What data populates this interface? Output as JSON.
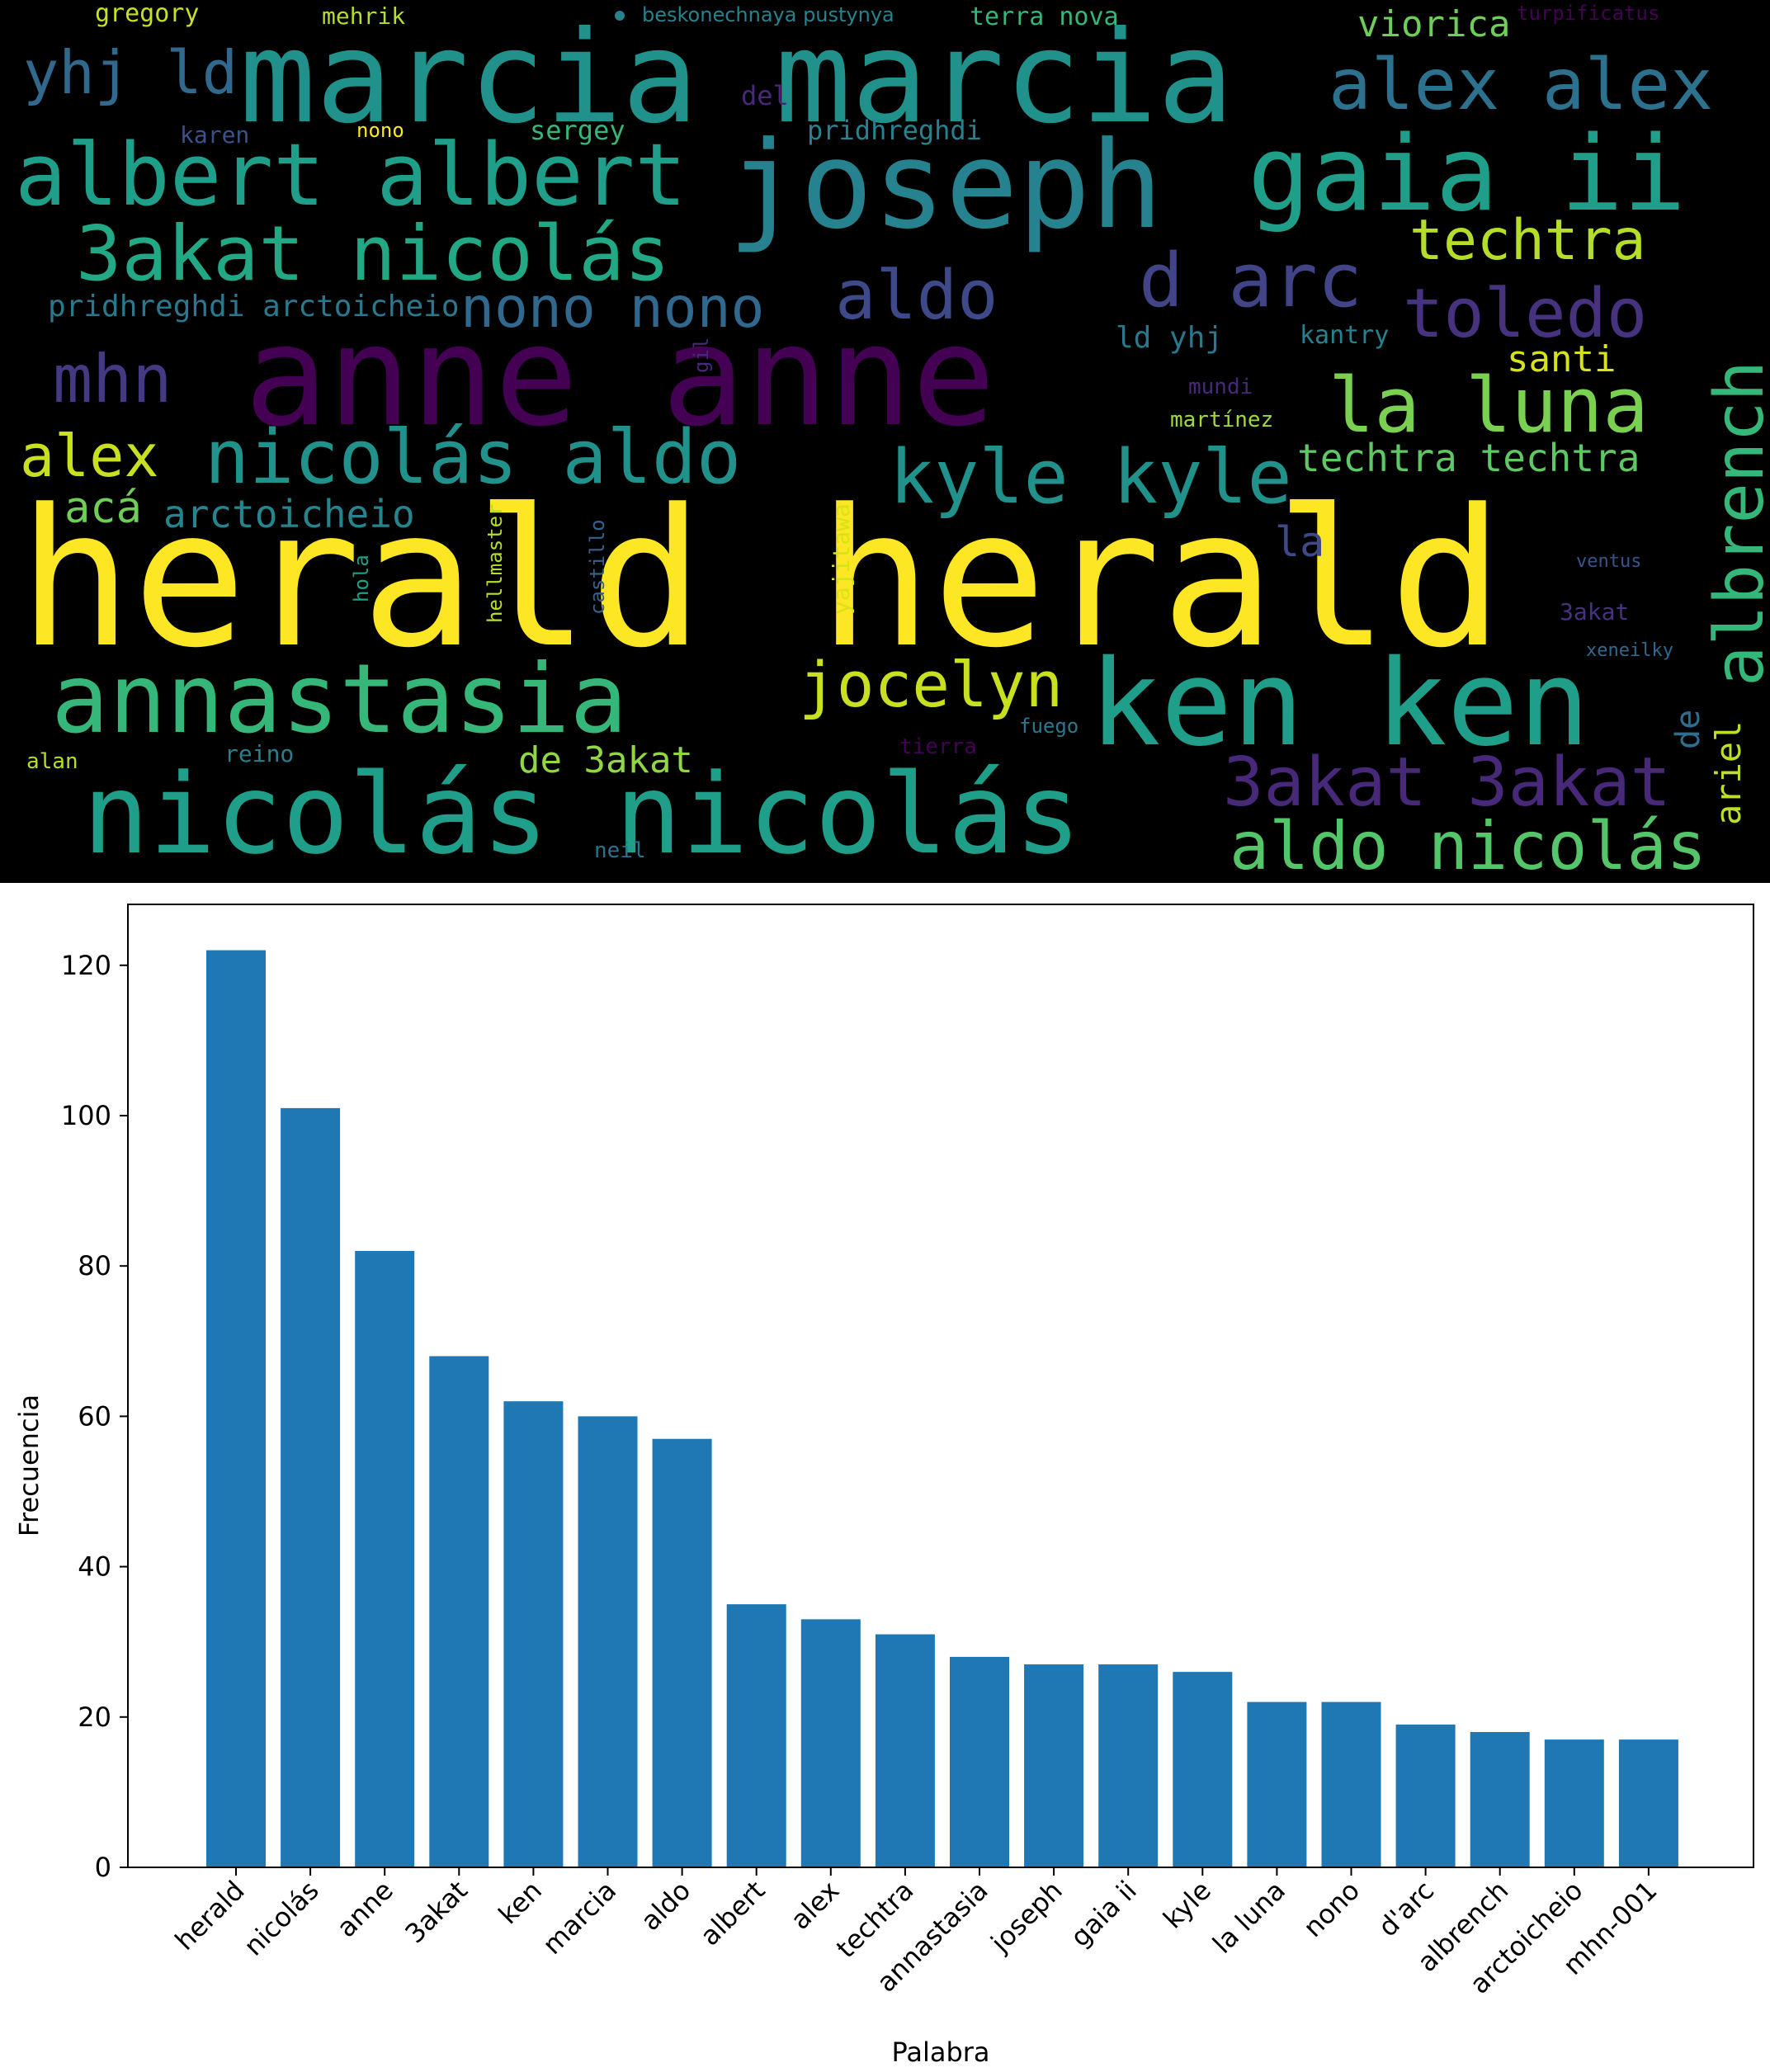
{
  "wordcloud": {
    "words": [
      {
        "t": "gregory",
        "c": "#c8e020"
      },
      {
        "t": "mehrik",
        "c": "#b5de2b"
      },
      {
        "t": "beskonechnaya pustynya",
        "c": "#26828e"
      },
      {
        "t": "terra nova",
        "c": "#35b779"
      },
      {
        "t": "viorica",
        "c": "#6ece58"
      },
      {
        "t": "turpificatus",
        "c": "#440154"
      },
      {
        "t": "yhj ld",
        "c": "#31688e"
      },
      {
        "t": "marcia marcia",
        "c": "#21918c"
      },
      {
        "t": "alex alex",
        "c": "#2c728e"
      },
      {
        "t": "karen",
        "c": "#3b528b"
      },
      {
        "t": "nono",
        "c": "#fde725"
      },
      {
        "t": "sergey",
        "c": "#35b779"
      },
      {
        "t": "pridhreghdi",
        "c": "#26828e"
      },
      {
        "t": "del",
        "c": "#482878"
      },
      {
        "t": "albert albert",
        "c": "#1f9e89"
      },
      {
        "t": "joseph",
        "c": "#26828e"
      },
      {
        "t": "gaia ii",
        "c": "#1f9e89"
      },
      {
        "t": "3akat nicolás",
        "c": "#22a884"
      },
      {
        "t": "techtra",
        "c": "#b5de2b"
      },
      {
        "t": "d arc",
        "c": "#414487"
      },
      {
        "t": "pridhreghdi arctoicheio",
        "c": "#2a788e"
      },
      {
        "t": "nono nono",
        "c": "#31688e"
      },
      {
        "t": "aldo",
        "c": "#3e4989"
      },
      {
        "t": "toledo",
        "c": "#46327e"
      },
      {
        "t": "anne anne",
        "c": "#440154"
      },
      {
        "t": "mhn",
        "c": "#443983"
      },
      {
        "t": "ld yhj",
        "c": "#2a788e"
      },
      {
        "t": "kantry",
        "c": "#26828e"
      },
      {
        "t": "santi",
        "c": "#d8e219"
      },
      {
        "t": "la luna",
        "c": "#7ad151"
      },
      {
        "t": "albrench",
        "c": "#35b779"
      },
      {
        "t": "alex",
        "c": "#c8e020"
      },
      {
        "t": "nicolás aldo",
        "c": "#21918c"
      },
      {
        "t": "kyle kyle",
        "c": "#21918c"
      },
      {
        "t": "techtra techtra",
        "c": "#5ec962"
      },
      {
        "t": "martínez",
        "c": "#a0da39"
      },
      {
        "t": "mundi",
        "c": "#482878"
      },
      {
        "t": "acá",
        "c": "#6ece58"
      },
      {
        "t": "arctoicheio",
        "c": "#25858e"
      },
      {
        "t": "herald herald",
        "c": "#fde725"
      },
      {
        "t": "la",
        "c": "#3e4989"
      },
      {
        "t": "annastasia",
        "c": "#35b779"
      },
      {
        "t": "jocelyn",
        "c": "#c8e020"
      },
      {
        "t": "ken ken",
        "c": "#1f9e89"
      },
      {
        "t": "3akat 3akat",
        "c": "#482878"
      },
      {
        "t": "ariel",
        "c": "#bddf26"
      },
      {
        "t": "de",
        "c": "#2e6e8e"
      },
      {
        "t": "nicolás nicolás",
        "c": "#1f9e89"
      },
      {
        "t": "aldo nicolás",
        "c": "#54c568"
      },
      {
        "t": "de 3akat",
        "c": "#90d743"
      },
      {
        "t": "reino",
        "c": "#277f8e"
      },
      {
        "t": "alan",
        "c": "#b5de2b"
      },
      {
        "t": "tierra",
        "c": "#440154"
      },
      {
        "t": "fuego",
        "c": "#2a788e"
      },
      {
        "t": "neil",
        "c": "#2c728e"
      },
      {
        "t": "xeneilky",
        "c": "#31688e"
      },
      {
        "t": "3akat",
        "c": "#46327e"
      },
      {
        "t": "ventus",
        "c": "#3b528b"
      },
      {
        "t": "hellmaster",
        "c": "#b5de2b"
      },
      {
        "t": "castillo",
        "c": "#34618d"
      },
      {
        "t": "hola",
        "c": "#1f9e89"
      },
      {
        "t": "yajitawa",
        "c": "#d8e219"
      },
      {
        "t": "gil",
        "c": "#482878"
      }
    ]
  },
  "chart_data": {
    "type": "bar",
    "categories": [
      "herald",
      "nicolás",
      "anne",
      "3akat",
      "ken",
      "marcia",
      "aldo",
      "albert",
      "alex",
      "techtra",
      "annastasia",
      "joseph",
      "gaia ii",
      "kyle",
      "la luna",
      "nono",
      "d'arc",
      "albrench",
      "arctoicheio",
      "mhn-001"
    ],
    "values": [
      122,
      101,
      82,
      68,
      62,
      60,
      57,
      35,
      33,
      31,
      28,
      27,
      27,
      26,
      22,
      22,
      19,
      18,
      17,
      17
    ],
    "xlabel": "Palabra",
    "ylabel": "Frecuencia",
    "yticks": [
      0,
      20,
      40,
      60,
      80,
      100,
      120
    ],
    "ylim": [
      0,
      128.1
    ],
    "bar_color": "#1f77b4"
  }
}
